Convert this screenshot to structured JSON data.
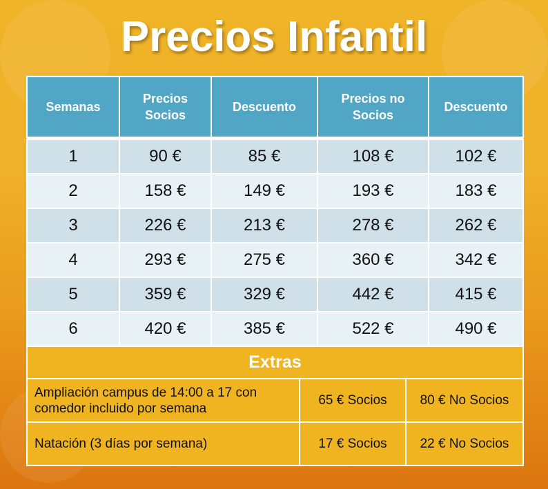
{
  "title": "Precios Infantil",
  "table": {
    "headers": [
      "Semanas",
      "Precios Socios",
      "Descuento",
      "Precios no Socios",
      "Descuento"
    ],
    "rows": [
      [
        "1",
        "90 €",
        "85 €",
        "108 €",
        "102 €"
      ],
      [
        "2",
        "158 €",
        "149 €",
        "193 €",
        "183 €"
      ],
      [
        "3",
        "226 €",
        "213 €",
        "278 €",
        "262 €"
      ],
      [
        "4",
        "293 €",
        "275 €",
        "360 €",
        "342 €"
      ],
      [
        "5",
        "359 €",
        "329 €",
        "442 €",
        "415 €"
      ],
      [
        "6",
        "420 €",
        "385 €",
        "522 €",
        "490 €"
      ]
    ]
  },
  "extras": {
    "title": "Extras",
    "rows": [
      [
        "Ampliación campus de 14:00 a 17 con comedor incluido por semana",
        "65 € Socios",
        "80 € No Socios"
      ],
      [
        "Natación (3 días por semana)",
        "17 € Socios",
        "22 € No Socios"
      ]
    ]
  },
  "colors": {
    "header": "#50a6c4",
    "row_dark": "#cfe0e9",
    "row_light": "#e8f1f5",
    "extras": "#f0b420"
  }
}
